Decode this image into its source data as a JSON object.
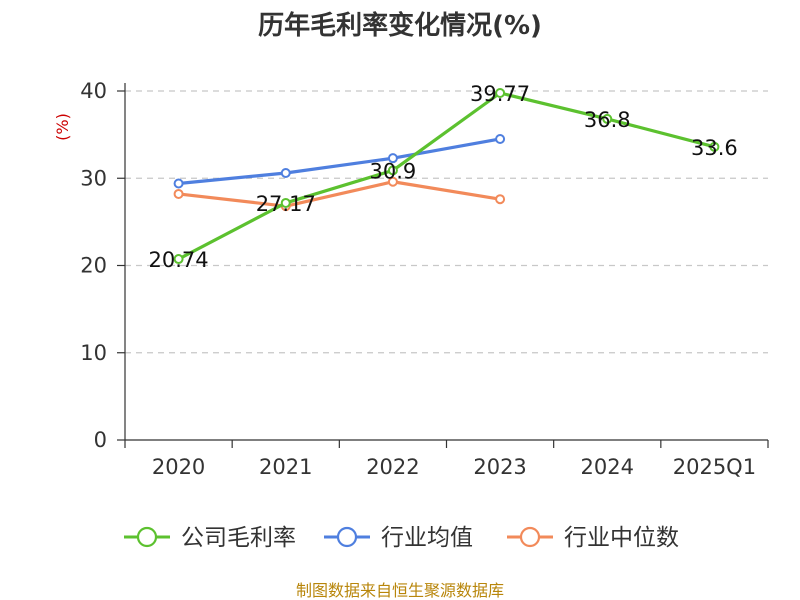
{
  "chart_data": {
    "type": "line",
    "title": "历年毛利率变化情况(%)",
    "ylabel": "(%)",
    "xlabel": "",
    "categories": [
      "2020",
      "2021",
      "2022",
      "2023",
      "2024",
      "2025Q1"
    ],
    "ylim": [
      0,
      40
    ],
    "yticks": [
      0,
      10,
      20,
      30,
      40
    ],
    "grid": true,
    "legend_position": "bottom",
    "series": [
      {
        "name": "公司毛利率",
        "color": "#5cc12f",
        "values": [
          20.74,
          27.17,
          30.9,
          39.77,
          36.8,
          33.6
        ],
        "show_labels": true
      },
      {
        "name": "行业均值",
        "color": "#4f7fdf",
        "values": [
          29.4,
          30.6,
          32.3,
          34.5,
          null,
          null
        ],
        "show_labels": false
      },
      {
        "name": "行业中位数",
        "color": "#f28a5a",
        "values": [
          28.2,
          26.8,
          29.6,
          27.6,
          null,
          null
        ],
        "show_labels": false
      }
    ]
  },
  "footer": {
    "source": "制图数据来自恒生聚源数据库"
  }
}
